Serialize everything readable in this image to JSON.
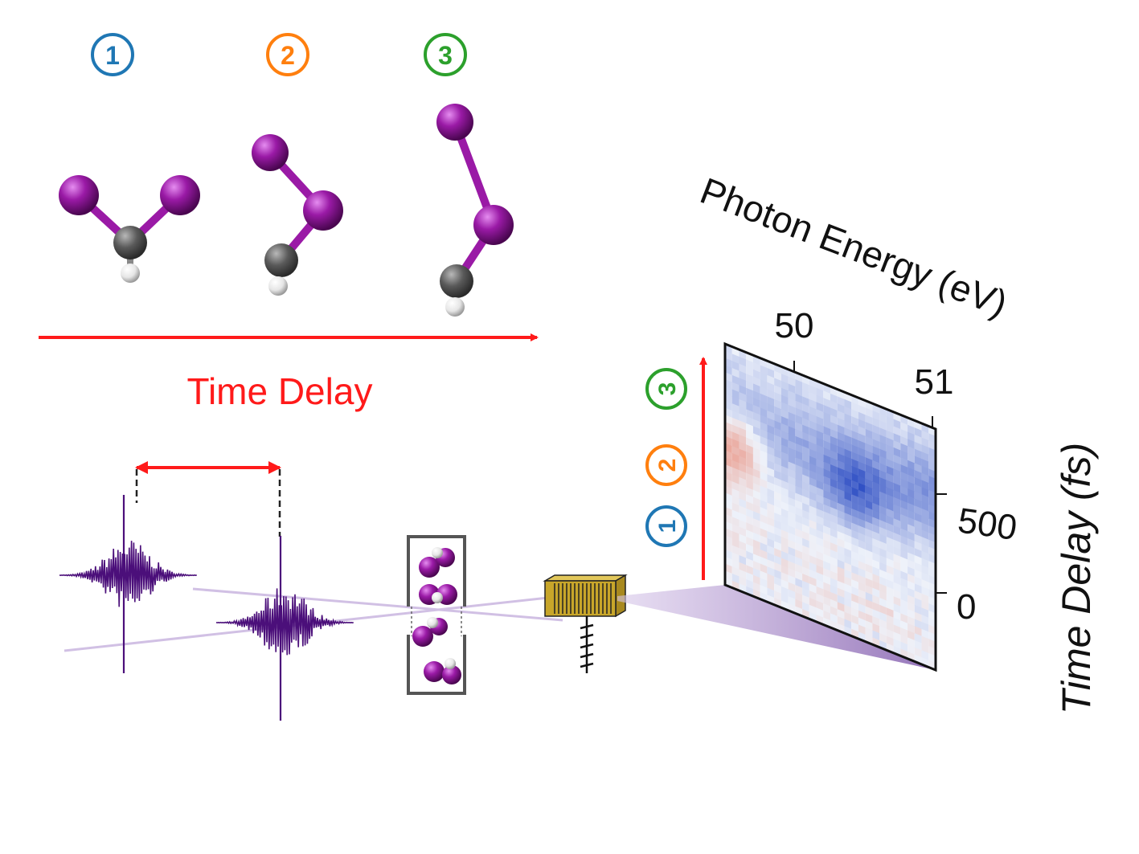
{
  "stages": [
    {
      "label": "1",
      "color": "#1f77b4"
    },
    {
      "label": "2",
      "color": "#ff7f0e"
    },
    {
      "label": "3",
      "color": "#2ca02c"
    }
  ],
  "time_delay_label": "Time Delay",
  "colors": {
    "arrow": "#ff1a1a",
    "iodine": "#8e1296",
    "carbon": "#5a5a5a",
    "hydrogen": "#eeeeee",
    "pulse": "#4b0f7a",
    "detector": "#c8a62a",
    "map_red": "#e8735a",
    "map_blue": "#2f4fc4"
  },
  "spectrum": {
    "x_axis_title": "Photon Energy (eV)",
    "x_ticks": [
      "50",
      "51"
    ],
    "y_axis_title": "Time Delay (fs)",
    "y_ticks": [
      "500",
      "0"
    ]
  },
  "chart_data": {
    "type": "heatmap",
    "xlabel": "Photon Energy (eV)",
    "ylabel": "Time Delay (fs)",
    "x_ticks": [
      50,
      51
    ],
    "y_ticks": [
      0,
      500
    ]
  }
}
